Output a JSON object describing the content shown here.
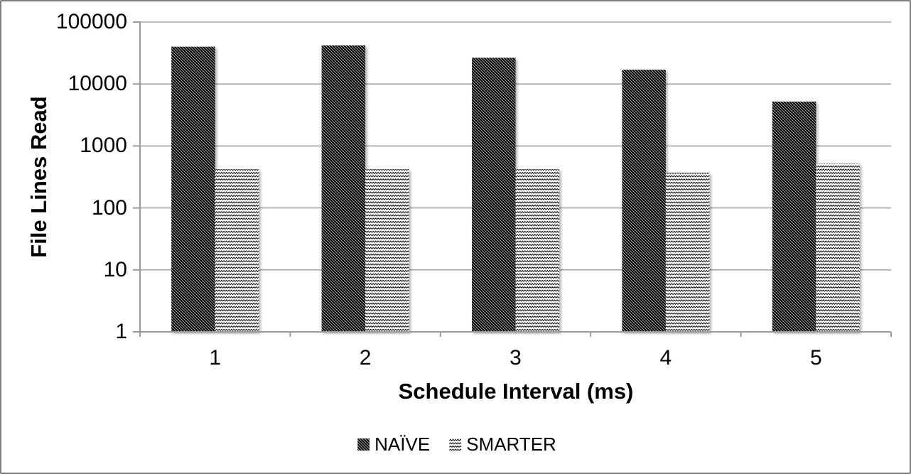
{
  "chart_data": {
    "type": "bar",
    "y_scale": "log",
    "categories": [
      "1",
      "2",
      "3",
      "4",
      "5"
    ],
    "series": [
      {
        "name": "NAÏVE",
        "pattern": "diagonal-hatch",
        "values": [
          40000,
          42000,
          26500,
          17000,
          5200
        ]
      },
      {
        "name": "SMARTER",
        "pattern": "zigzag-wave",
        "values": [
          420,
          420,
          420,
          370,
          520
        ]
      }
    ],
    "title": "",
    "xlabel": "Schedule Interval (ms)",
    "ylabel": "File Lines Read",
    "ylim": [
      1,
      100000
    ],
    "y_ticks": [
      1,
      10,
      100,
      1000,
      10000,
      100000
    ],
    "y_tick_labels": [
      "1",
      "10",
      "100",
      "1000",
      "10000",
      "100000"
    ],
    "grid": "horizontal-decades",
    "legend_position": "bottom-center"
  },
  "colors": {
    "grid": "#a6a6a6",
    "axis": "#9a9a9a",
    "text": "#000000",
    "figure_border": "#7f7f7f",
    "bar_ink": "#111111",
    "bar_background": "#ffffff"
  }
}
